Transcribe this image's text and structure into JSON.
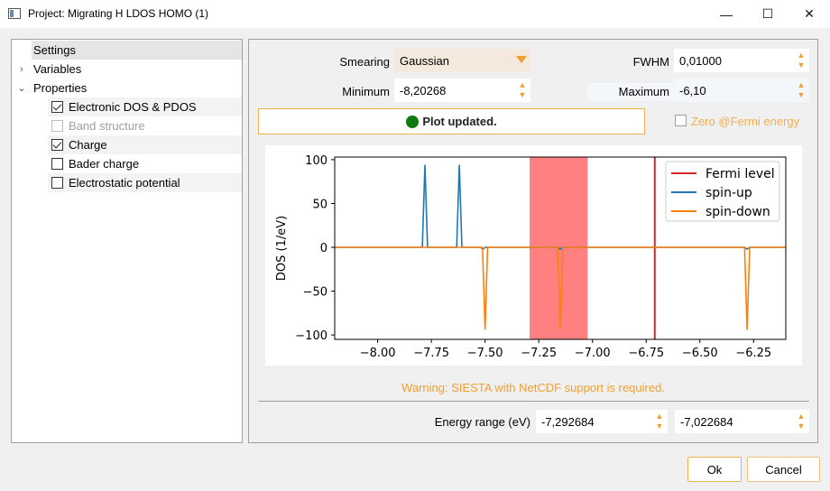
{
  "window": {
    "title": "Project: Migrating H LDOS HOMO (1)",
    "min_glyph": "—",
    "max_glyph": "☐",
    "close_glyph": "✕"
  },
  "tree": {
    "settings": "Settings",
    "variables": "Variables",
    "properties": "Properties",
    "items": [
      {
        "label": "Electronic DOS & PDOS",
        "checked": true,
        "disabled": false
      },
      {
        "label": "Band structure",
        "checked": false,
        "disabled": true
      },
      {
        "label": "Charge",
        "checked": true,
        "disabled": false
      },
      {
        "label": "Bader charge",
        "checked": false,
        "disabled": false
      },
      {
        "label": "Electrostatic potential",
        "checked": false,
        "disabled": false
      }
    ]
  },
  "form": {
    "smearing_label": "Smearing",
    "smearing_value": "Gaussian",
    "fwhm_label": "FWHM",
    "fwhm_value": "0,01000",
    "minimum_label": "Minimum",
    "minimum_value": "-8,20268",
    "maximum_label": "Maximum",
    "maximum_value": "-6,10",
    "status": "Plot updated.",
    "zero_fermi_label": "Zero @Fermi energy",
    "warning": "Warning: SIESTA with NetCDF support is required.",
    "energy_range_label": "Energy range (eV)",
    "energy_min": "-7,292684",
    "energy_max": "-7,022684"
  },
  "buttons": {
    "ok": "Ok",
    "cancel": "Cancel"
  },
  "colors": {
    "accent": "#f0a030",
    "fermi": "#d62728",
    "spin_up": "#1f77b4",
    "spin_down": "#ff7f0e",
    "highlight": "#ff8080",
    "status_ok": "#0f7a0f"
  },
  "chart_data": {
    "type": "line",
    "ylabel": "DOS (1/eV)",
    "xlim": [
      -8.2,
      -6.1
    ],
    "ylim": [
      -105,
      103
    ],
    "x_ticks": [
      -8.0,
      -7.75,
      -7.5,
      -7.25,
      -7.0,
      -6.75,
      -6.5,
      -6.25
    ],
    "x_tick_labels": [
      "−8.00",
      "−7.75",
      "−7.50",
      "−7.25",
      "−7.00",
      "−6.75",
      "−6.50",
      "−6.25"
    ],
    "y_ticks": [
      100,
      50,
      0,
      -50,
      -100
    ],
    "y_tick_labels": [
      "100",
      "50",
      "0",
      "−50",
      "−100"
    ],
    "legend_position": "top-right",
    "fermi_level": -6.71,
    "highlight_range": [
      -7.292684,
      -7.022684
    ],
    "series": [
      {
        "name": "Fermi level",
        "kind": "vline",
        "color": "#d62728"
      },
      {
        "name": "spin-up",
        "color": "#1f77b4",
        "peaks": [
          {
            "x": -7.78,
            "y": 94
          },
          {
            "x": -7.62,
            "y": 94
          },
          {
            "x": -7.51,
            "y": -2
          },
          {
            "x": -7.15,
            "y": -2
          },
          {
            "x": -6.28,
            "y": -2
          }
        ]
      },
      {
        "name": "spin-down",
        "color": "#ff7f0e",
        "peaks": [
          {
            "x": -7.5,
            "y": -94
          },
          {
            "x": -7.15,
            "y": -94
          },
          {
            "x": -6.28,
            "y": -94
          }
        ]
      }
    ]
  }
}
